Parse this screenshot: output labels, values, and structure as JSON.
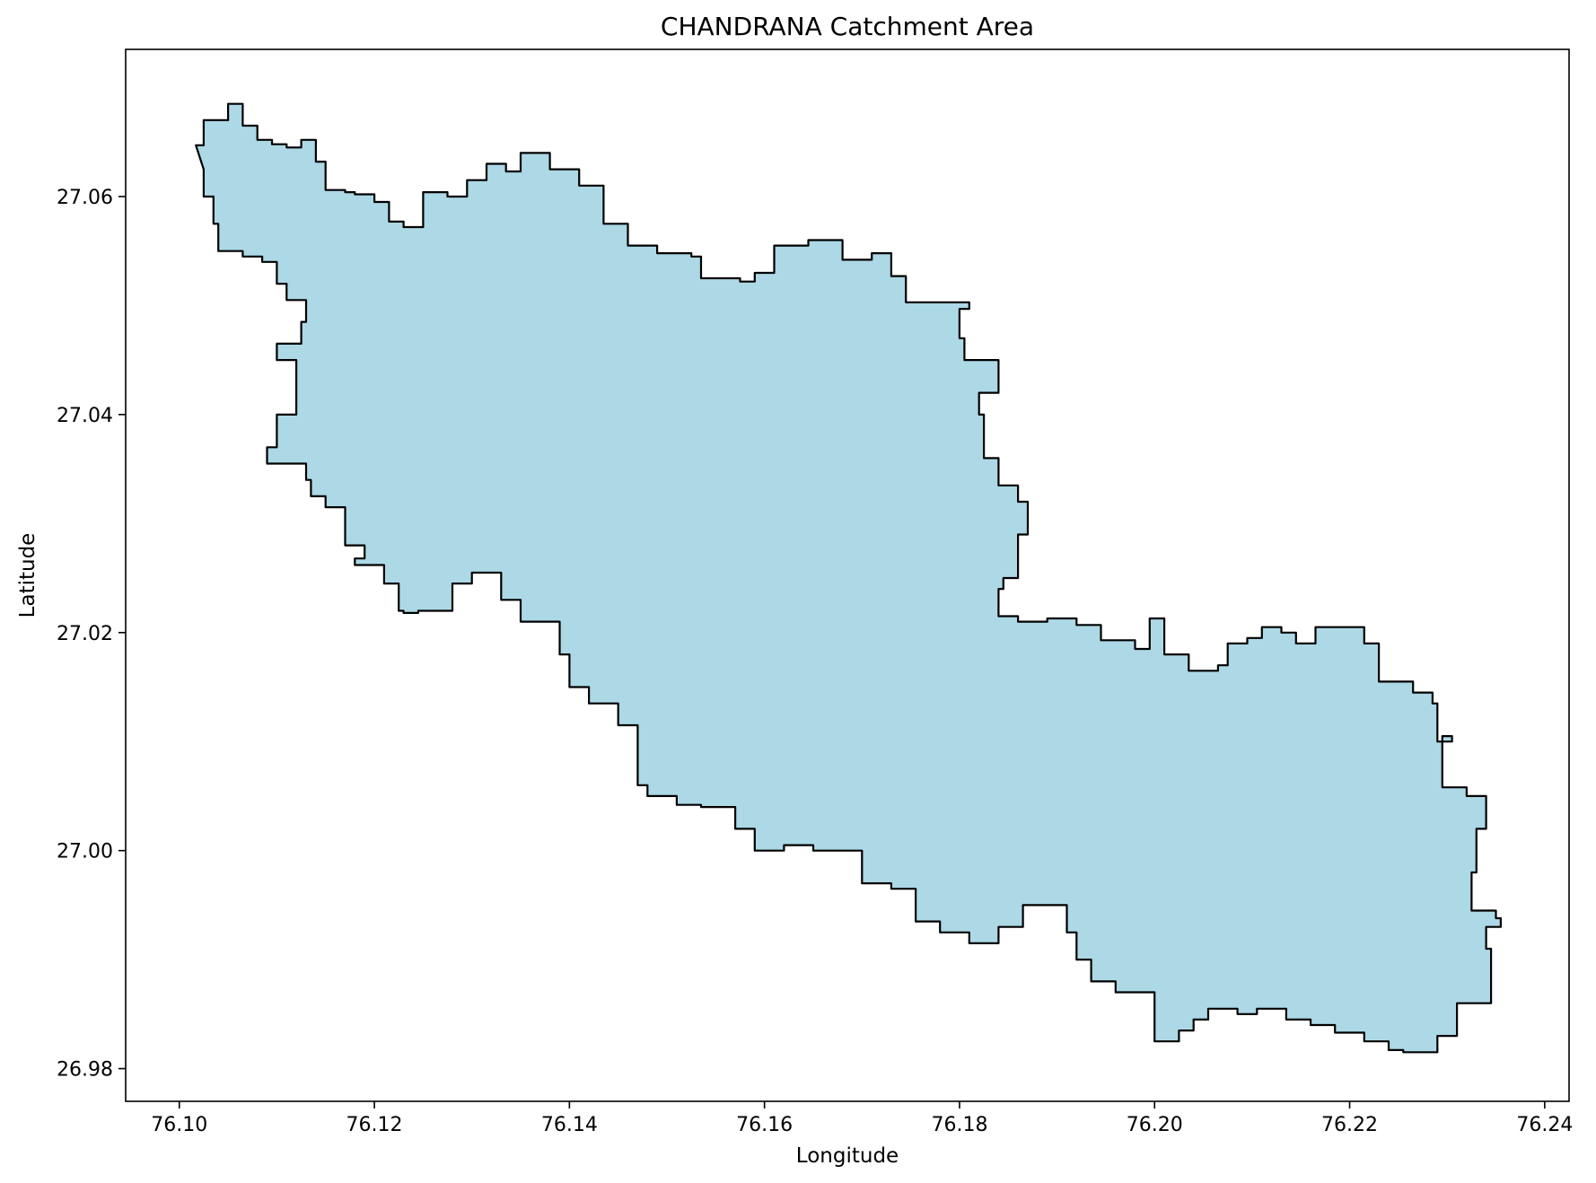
{
  "chart_data": {
    "type": "map",
    "title": "CHANDRANA Catchment Area",
    "xlabel": "Longitude",
    "ylabel": "Latitude",
    "xlim": [
      76.0945,
      76.2425
    ],
    "ylim": [
      26.977,
      27.0735
    ],
    "grid": false,
    "fill_color": "#add8e6",
    "edge_color": "#000000",
    "x_ticks": [
      {
        "value": 76.1,
        "label": "76.10"
      },
      {
        "value": 76.12,
        "label": "76.12"
      },
      {
        "value": 76.14,
        "label": "76.14"
      },
      {
        "value": 76.16,
        "label": "76.16"
      },
      {
        "value": 76.18,
        "label": "76.18"
      },
      {
        "value": 76.2,
        "label": "76.20"
      },
      {
        "value": 76.22,
        "label": "76.22"
      },
      {
        "value": 76.24,
        "label": "76.24"
      }
    ],
    "y_ticks": [
      {
        "value": 26.98,
        "label": "26.98"
      },
      {
        "value": 27.0,
        "label": "27.00"
      },
      {
        "value": 27.02,
        "label": "27.02"
      },
      {
        "value": 27.04,
        "label": "27.04"
      },
      {
        "value": 27.06,
        "label": "27.06"
      }
    ],
    "boundary": [
      [
        76.1017,
        27.0647
      ],
      [
        76.1025,
        27.067
      ],
      [
        76.105,
        27.0685
      ],
      [
        76.1065,
        27.0665
      ],
      [
        76.108,
        27.0652
      ],
      [
        76.1095,
        27.0648
      ],
      [
        76.111,
        27.0645
      ],
      [
        76.1125,
        27.0652
      ],
      [
        76.114,
        27.0632
      ],
      [
        76.115,
        27.0606
      ],
      [
        76.117,
        27.0604
      ],
      [
        76.118,
        27.0602
      ],
      [
        76.12,
        27.0595
      ],
      [
        76.1215,
        27.0577
      ],
      [
        76.123,
        27.0572
      ],
      [
        76.125,
        27.0604
      ],
      [
        76.1275,
        27.06
      ],
      [
        76.1295,
        27.0615
      ],
      [
        76.1315,
        27.063
      ],
      [
        76.1335,
        27.0623
      ],
      [
        76.135,
        27.064
      ],
      [
        76.137,
        27.064
      ],
      [
        76.138,
        27.0625
      ],
      [
        76.141,
        27.061
      ],
      [
        76.1435,
        27.0575
      ],
      [
        76.146,
        27.0555
      ],
      [
        76.149,
        27.0548
      ],
      [
        76.1525,
        27.0545
      ],
      [
        76.1535,
        27.0525
      ],
      [
        76.1575,
        27.0522
      ],
      [
        76.159,
        27.053
      ],
      [
        76.161,
        27.0555
      ],
      [
        76.1645,
        27.056
      ],
      [
        76.1665,
        27.056
      ],
      [
        76.168,
        27.0542
      ],
      [
        76.171,
        27.0548
      ],
      [
        76.173,
        27.0527
      ],
      [
        76.1745,
        27.0503
      ],
      [
        76.18,
        27.0503
      ],
      [
        76.181,
        27.0497
      ],
      [
        76.18,
        27.047
      ],
      [
        76.1805,
        27.045
      ],
      [
        76.184,
        27.042
      ],
      [
        76.182,
        27.04
      ],
      [
        76.1825,
        27.036
      ],
      [
        76.184,
        27.0335
      ],
      [
        76.186,
        27.032
      ],
      [
        76.187,
        27.029
      ],
      [
        76.186,
        27.025
      ],
      [
        76.1845,
        27.024
      ],
      [
        76.184,
        27.0215
      ],
      [
        76.186,
        27.021
      ],
      [
        76.189,
        27.0213
      ],
      [
        76.192,
        27.0207
      ],
      [
        76.1945,
        27.0193
      ],
      [
        76.198,
        27.0185
      ],
      [
        76.1995,
        27.0213
      ],
      [
        76.201,
        27.0205
      ],
      [
        76.201,
        27.018
      ],
      [
        76.2035,
        27.0165
      ],
      [
        76.2065,
        27.017
      ],
      [
        76.2075,
        27.019
      ],
      [
        76.2095,
        27.0195
      ],
      [
        76.211,
        27.0205
      ],
      [
        76.213,
        27.02
      ],
      [
        76.2145,
        27.019
      ],
      [
        76.2165,
        27.0205
      ],
      [
        76.22,
        27.0205
      ],
      [
        76.2215,
        27.019
      ],
      [
        76.223,
        27.0155
      ],
      [
        76.2265,
        27.0145
      ],
      [
        76.2285,
        27.0135
      ],
      [
        76.229,
        27.01
      ],
      [
        76.2305,
        27.0105
      ],
      [
        76.2295,
        27.0058
      ],
      [
        76.232,
        27.005
      ],
      [
        76.234,
        27.002
      ],
      [
        76.233,
        26.998
      ],
      [
        76.2325,
        26.9945
      ],
      [
        76.235,
        26.9938
      ],
      [
        76.2355,
        26.993
      ],
      [
        76.234,
        26.991
      ],
      [
        76.2345,
        26.988
      ],
      [
        76.2345,
        26.986
      ],
      [
        76.2325,
        26.986
      ],
      [
        76.231,
        26.983
      ],
      [
        76.229,
        26.9815
      ],
      [
        76.2255,
        26.9817
      ],
      [
        76.224,
        26.9825
      ],
      [
        76.2215,
        26.9833
      ],
      [
        76.2185,
        26.984
      ],
      [
        76.216,
        26.9845
      ],
      [
        76.2135,
        26.9855
      ],
      [
        76.2105,
        26.985
      ],
      [
        76.2085,
        26.9855
      ],
      [
        76.2055,
        26.9845
      ],
      [
        76.204,
        26.9835
      ],
      [
        76.2025,
        26.9825
      ],
      [
        76.2,
        26.9825
      ],
      [
        76.2,
        26.987
      ],
      [
        76.196,
        26.988
      ],
      [
        76.1935,
        26.99
      ],
      [
        76.192,
        26.9925
      ],
      [
        76.191,
        26.995
      ],
      [
        76.188,
        26.995
      ],
      [
        76.1865,
        26.993
      ],
      [
        76.184,
        26.9915
      ],
      [
        76.181,
        26.9925
      ],
      [
        76.178,
        26.9935
      ],
      [
        76.1755,
        26.9965
      ],
      [
        76.173,
        26.997
      ],
      [
        76.17,
        26.9975
      ],
      [
        76.17,
        27.0
      ],
      [
        76.165,
        27.0005
      ],
      [
        76.162,
        27.0
      ],
      [
        76.159,
        27.002
      ],
      [
        76.157,
        27.004
      ],
      [
        76.1535,
        27.0042
      ],
      [
        76.151,
        27.005
      ],
      [
        76.148,
        27.006
      ],
      [
        76.147,
        27.008
      ],
      [
        76.147,
        27.0115
      ],
      [
        76.145,
        27.0135
      ],
      [
        76.142,
        27.015
      ],
      [
        76.14,
        27.018
      ],
      [
        76.139,
        27.021
      ],
      [
        76.135,
        27.023
      ],
      [
        76.133,
        27.0255
      ],
      [
        76.13,
        27.0245
      ],
      [
        76.128,
        27.022
      ],
      [
        76.1245,
        27.0218
      ],
      [
        76.123,
        27.022
      ],
      [
        76.1225,
        27.0245
      ],
      [
        76.121,
        27.0262
      ],
      [
        76.118,
        27.0268
      ],
      [
        76.119,
        27.028
      ],
      [
        76.117,
        27.0315
      ],
      [
        76.115,
        27.0325
      ],
      [
        76.1135,
        27.034
      ],
      [
        76.113,
        27.0355
      ],
      [
        76.1105,
        27.0355
      ],
      [
        76.109,
        27.037
      ],
      [
        76.11,
        27.04
      ],
      [
        76.112,
        27.0415
      ],
      [
        76.112,
        27.045
      ],
      [
        76.11,
        27.0465
      ],
      [
        76.1125,
        27.0485
      ],
      [
        76.113,
        27.0505
      ],
      [
        76.111,
        27.052
      ],
      [
        76.11,
        27.054
      ],
      [
        76.1085,
        27.0545
      ],
      [
        76.1065,
        27.055
      ],
      [
        76.104,
        27.0575
      ],
      [
        76.1035,
        27.06
      ],
      [
        76.1025,
        27.0625
      ]
    ]
  }
}
